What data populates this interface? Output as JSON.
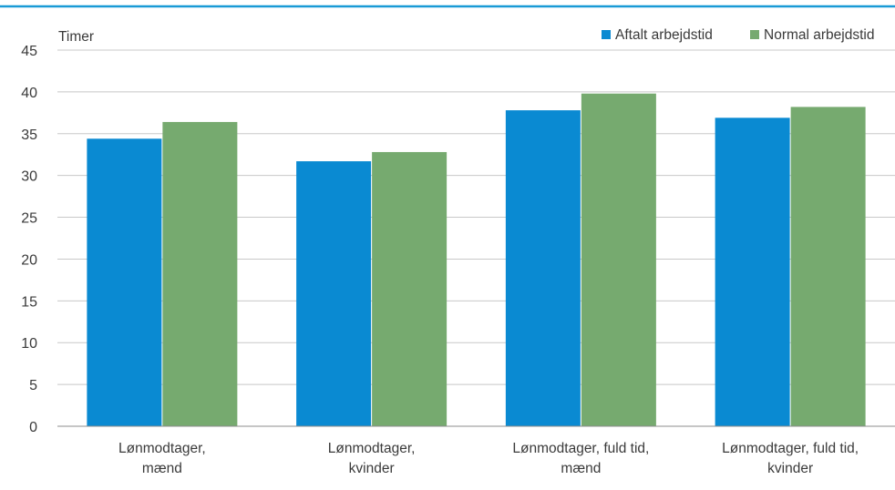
{
  "chart_data": {
    "type": "bar",
    "ylabel": "Timer",
    "ylim": [
      0,
      45
    ],
    "yticks": [
      0,
      5,
      10,
      15,
      20,
      25,
      30,
      35,
      40,
      45
    ],
    "grid": true,
    "legend_position": "top-right",
    "categories": [
      [
        "Lønmodtager,",
        "mænd"
      ],
      [
        "Lønmodtager,",
        "kvinder"
      ],
      [
        "Lønmodtager, fuld tid,",
        "mænd"
      ],
      [
        "Lønmodtager, fuld tid,",
        "kvinder"
      ]
    ],
    "series": [
      {
        "name": "Aftalt arbejdstid",
        "color": "#0a8ad2",
        "values": [
          34.4,
          31.7,
          37.8,
          36.9
        ]
      },
      {
        "name": "Normal arbejdstid",
        "color": "#76aa6f",
        "values": [
          36.4,
          32.8,
          39.8,
          38.2
        ]
      }
    ],
    "colors": {
      "top_rule": "#1a9ad6",
      "grid": "#c8c8c8",
      "axis": "#8c8c8c"
    }
  }
}
